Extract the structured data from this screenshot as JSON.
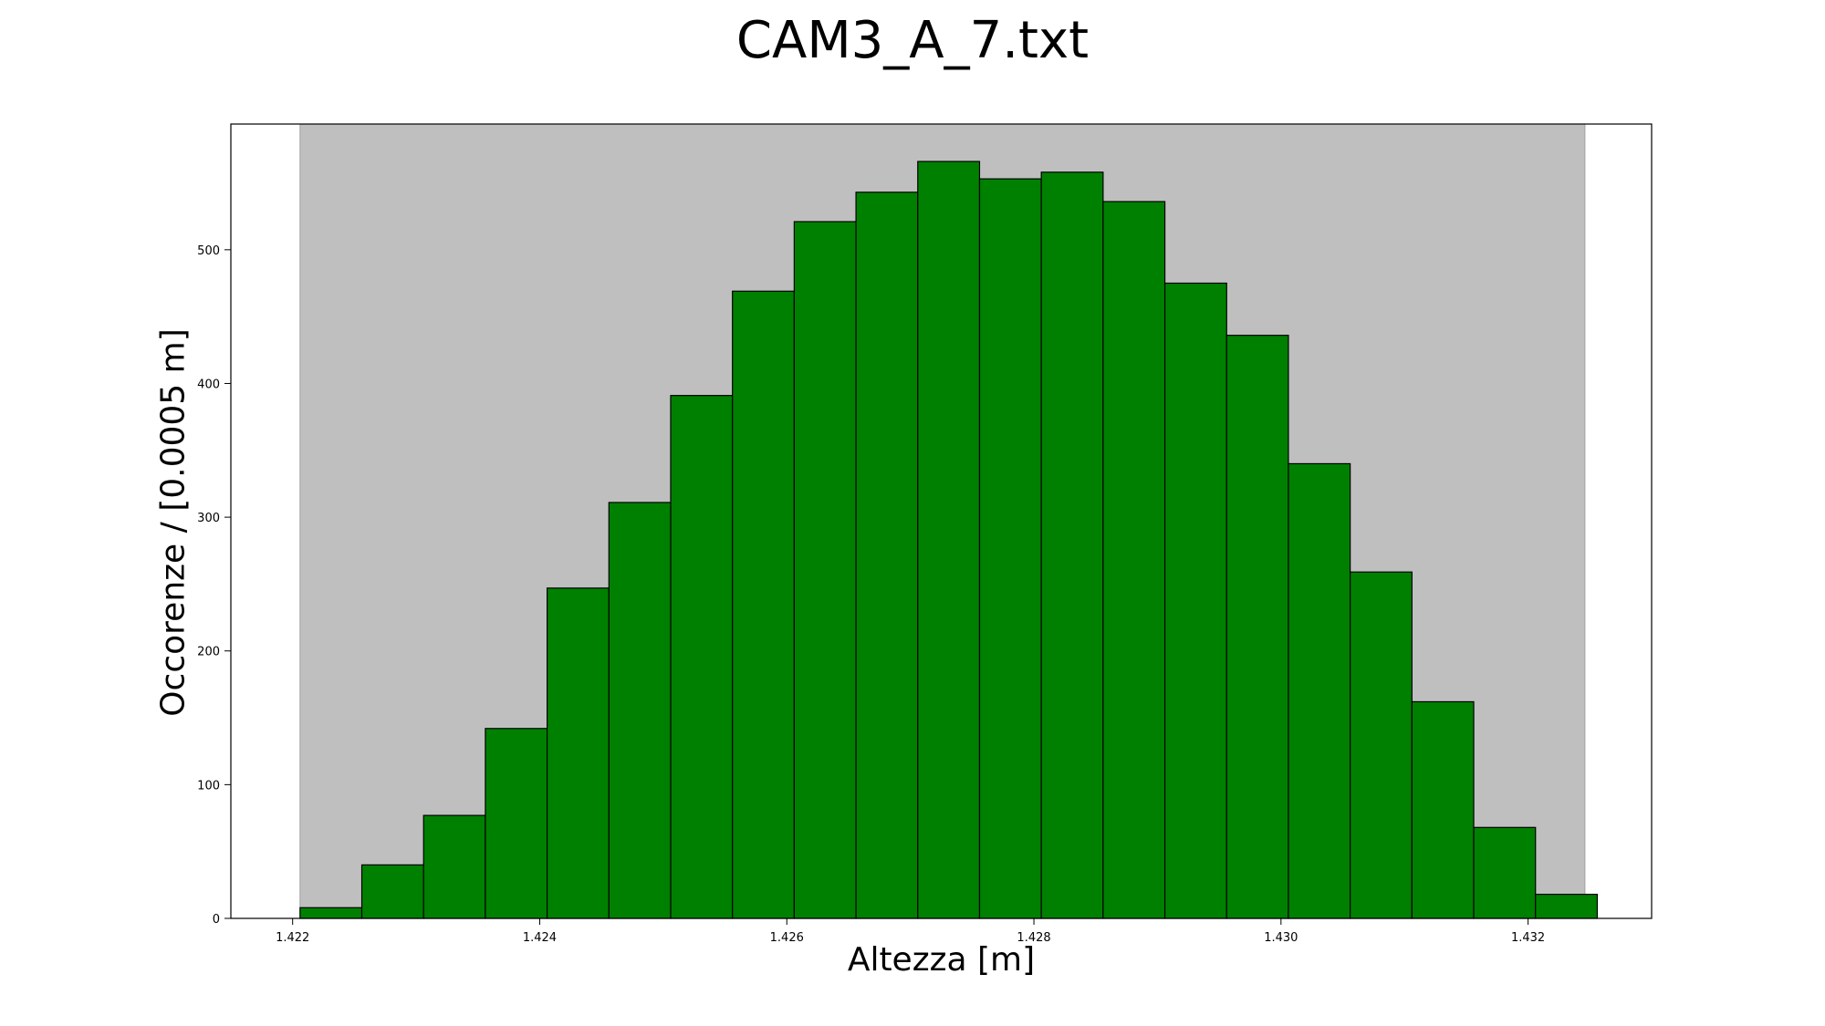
{
  "chart_data": {
    "type": "bar",
    "title": "CAM3_A_7.txt",
    "xlabel": "Altezza [m]",
    "ylabel": "Occorenze / [0.0005 m]",
    "bin_edges": [
      1.42206,
      1.42256,
      1.42306,
      1.42356,
      1.42406,
      1.42456,
      1.42506,
      1.42556,
      1.42606,
      1.42656,
      1.42706,
      1.42756,
      1.42806,
      1.42856,
      1.42906,
      1.42956,
      1.43006,
      1.43056,
      1.43106,
      1.43156,
      1.43206,
      1.43256
    ],
    "values": [
      8,
      40,
      77,
      142,
      247,
      311,
      391,
      469,
      521,
      543,
      566,
      553,
      558,
      536,
      475,
      436,
      340,
      259,
      162,
      68,
      18
    ],
    "xlim": [
      1.4215,
      1.433
    ],
    "ylim": [
      0,
      594
    ],
    "xticks": [
      1.422,
      1.424,
      1.426,
      1.428,
      1.43,
      1.432
    ],
    "xtick_labels": [
      "1.422",
      "1.424",
      "1.426",
      "1.428",
      "1.430",
      "1.432"
    ],
    "yticks": [
      0,
      100,
      200,
      300,
      400,
      500
    ],
    "ytick_labels": [
      "0",
      "100",
      "200",
      "300",
      "400",
      "500"
    ],
    "shaded_range": [
      1.42206,
      1.43246
    ],
    "colors": {
      "bar": "#008000",
      "bar_edge": "#000000",
      "shade": "#bfbfbf"
    },
    "grid": false,
    "legend": "none"
  }
}
